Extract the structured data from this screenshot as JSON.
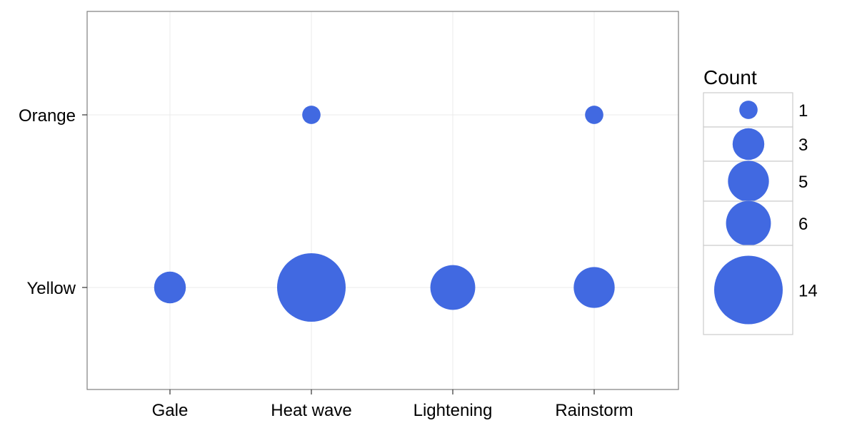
{
  "chart_data": {
    "type": "scatter",
    "title": "",
    "xlabel": "",
    "ylabel": "",
    "x_categories": [
      "Gale",
      "Heat wave",
      "Lightening",
      "Rainstorm"
    ],
    "y_categories": [
      "Yellow",
      "Orange"
    ],
    "points": [
      {
        "x": "Gale",
        "y": "Yellow",
        "count": 3
      },
      {
        "x": "Heat wave",
        "y": "Yellow",
        "count": 14
      },
      {
        "x": "Lightening",
        "y": "Yellow",
        "count": 6
      },
      {
        "x": "Rainstorm",
        "y": "Yellow",
        "count": 5
      },
      {
        "x": "Heat wave",
        "y": "Orange",
        "count": 1
      },
      {
        "x": "Rainstorm",
        "y": "Orange",
        "count": 1
      }
    ],
    "legend": {
      "title": "Count",
      "placement": "right",
      "entries": [
        1,
        3,
        5,
        6,
        14
      ]
    },
    "grid": true,
    "point_color": "#4169E1"
  }
}
